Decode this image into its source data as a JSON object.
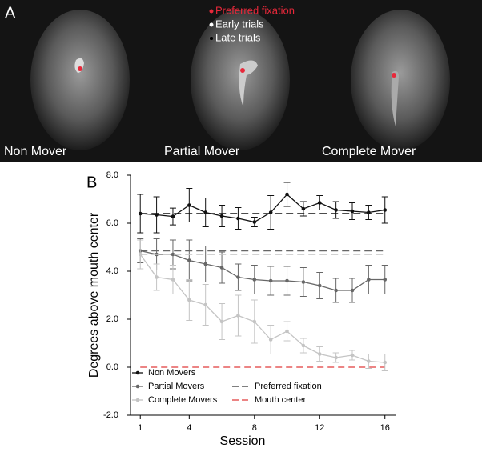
{
  "panel_a": {
    "label": "A",
    "panels": [
      {
        "label": "Non Mover"
      },
      {
        "label": "Partial Mover"
      },
      {
        "label": "Complete Mover"
      }
    ],
    "legend": [
      {
        "label": "Preferred fixation",
        "color": "#e8283a"
      },
      {
        "label": "Early trials",
        "color": "#ffffff"
      },
      {
        "label": "Late trials",
        "color": "#000000"
      }
    ]
  },
  "chart_data": {
    "type": "line",
    "panel_label": "B",
    "xlabel": "Session",
    "ylabel": "Degrees above mouth center",
    "x": [
      1,
      2,
      3,
      4,
      5,
      6,
      7,
      8,
      9,
      10,
      11,
      12,
      13,
      14,
      15,
      16
    ],
    "xlim": [
      0.4,
      16.7
    ],
    "xticks": [
      1,
      4,
      8,
      12,
      16
    ],
    "ylim": [
      -2,
      8
    ],
    "yticks": [
      {
        "value": -2,
        "label": "-2.0"
      },
      {
        "value": 0,
        "label": "0.0"
      },
      {
        "value": 2,
        "label": "2.0"
      },
      {
        "value": 4,
        "label": "4.0"
      },
      {
        "value": 6,
        "label": "6.0"
      },
      {
        "value": 8,
        "label": "8.0"
      }
    ],
    "series": [
      {
        "name": "Non Movers",
        "color": "#111111",
        "preferred_fixation": 6.4,
        "values": [
          6.4,
          6.35,
          6.28,
          6.75,
          6.45,
          6.3,
          6.2,
          6.05,
          6.45,
          7.2,
          6.6,
          6.85,
          6.55,
          6.5,
          6.45,
          6.55
        ],
        "errors": [
          0.8,
          0.75,
          0.35,
          0.7,
          0.6,
          0.45,
          0.45,
          0.2,
          0.7,
          0.5,
          0.3,
          0.3,
          0.35,
          0.35,
          0.3,
          0.55
        ]
      },
      {
        "name": "Partial Movers",
        "color": "#676767",
        "preferred_fixation": 4.85,
        "values": [
          4.85,
          4.7,
          4.7,
          4.45,
          4.3,
          4.15,
          3.75,
          3.65,
          3.6,
          3.6,
          3.55,
          3.4,
          3.2,
          3.2,
          3.65,
          3.65
        ],
        "errors": [
          0.5,
          0.65,
          0.6,
          0.85,
          0.75,
          0.65,
          0.55,
          0.6,
          0.6,
          0.6,
          0.6,
          0.55,
          0.5,
          0.5,
          0.6,
          0.6
        ]
      },
      {
        "name": "Complete Movers",
        "color": "#c4c4c4",
        "preferred_fixation": 4.7,
        "values": [
          4.7,
          3.75,
          3.65,
          2.8,
          2.6,
          1.9,
          2.15,
          1.9,
          1.15,
          1.5,
          0.9,
          0.55,
          0.4,
          0.5,
          0.25,
          0.2
        ],
        "errors": [
          0.6,
          0.55,
          0.6,
          0.85,
          0.85,
          0.75,
          0.85,
          0.9,
          0.6,
          0.4,
          0.3,
          0.3,
          0.2,
          0.2,
          0.3,
          0.35
        ]
      }
    ],
    "preferred_fixation_label": "Preferred fixation",
    "reference_color": "#555555",
    "mouth_center_label": "Mouth center",
    "mouth_center": 0,
    "mouth_center_color": "#e03a3a"
  }
}
